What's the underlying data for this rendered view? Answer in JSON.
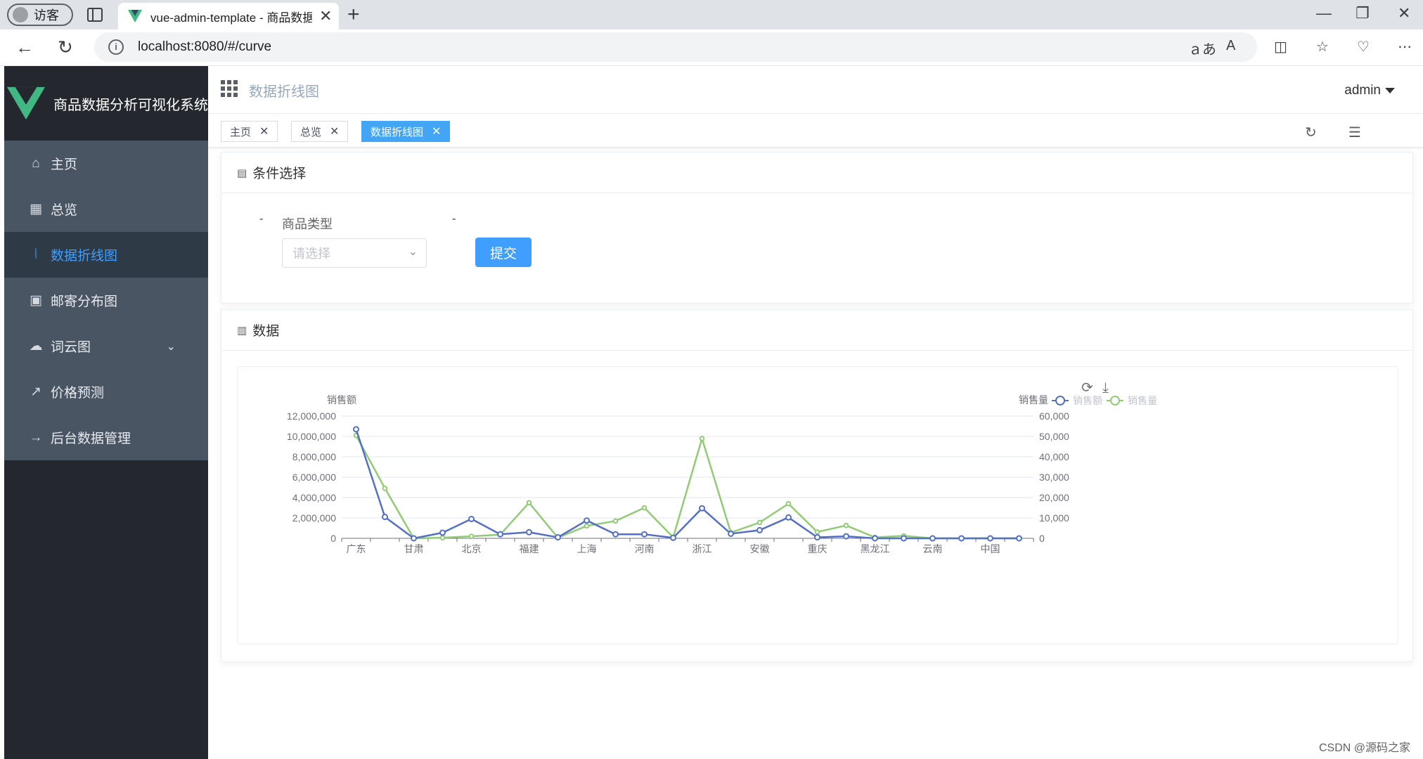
{
  "browser": {
    "profile_label": "访客",
    "tab_title": "vue-admin-template - 商品数据",
    "url": "localhost:8080/#/curve"
  },
  "sidebar": {
    "brand": "商品数据分析可视化系统",
    "items": [
      {
        "label": "主页",
        "icon": "home-icon"
      },
      {
        "label": "总览",
        "icon": "grid-icon"
      },
      {
        "label": "数据折线图",
        "icon": "line-chart-icon"
      },
      {
        "label": "邮寄分布图",
        "icon": "package-icon"
      },
      {
        "label": "词云图",
        "icon": "cloud-icon"
      },
      {
        "label": "价格预测",
        "icon": "trend-icon"
      },
      {
        "label": "后台数据管理",
        "icon": "arrow-right-icon"
      }
    ],
    "active_index": 2
  },
  "navbar": {
    "breadcrumb": "数据折线图",
    "user": "admin"
  },
  "tags": [
    {
      "label": "主页"
    },
    {
      "label": "总览"
    },
    {
      "label": "数据折线图"
    }
  ],
  "filter_card": {
    "title": "条件选择",
    "field_label": "商品类型",
    "select_placeholder": "请选择",
    "submit_label": "提交",
    "dash_left": "-",
    "dash_right": "-"
  },
  "data_card": {
    "title": "数据"
  },
  "watermark": "CSDN @源码之家",
  "chart_data": {
    "type": "line",
    "categories": [
      "广东",
      "",
      "甘肃",
      "",
      "北京",
      "",
      "福建",
      "",
      "上海",
      "",
      "河南",
      "",
      "浙江",
      "",
      "安徽",
      "",
      "重庆",
      "",
      "黑龙江",
      "",
      "云南",
      "",
      "中国",
      ""
    ],
    "y_left_label": "销售额",
    "y_right_label": "销售量",
    "y_left_ticks": [
      "0",
      "2,000,000",
      "4,000,000",
      "6,000,000",
      "8,000,000",
      "10,000,000",
      "12,000,000"
    ],
    "y_right_ticks": [
      "0",
      "10,000",
      "20,000",
      "30,000",
      "40,000",
      "50,000",
      "60,000"
    ],
    "ylim_left": [
      0,
      12000000
    ],
    "ylim_right": [
      0,
      60000
    ],
    "legend": [
      "销售额",
      "销售量"
    ],
    "colors": {
      "sales_amount": "#5470c6",
      "sales_volume": "#91cc75"
    },
    "series": [
      {
        "name": "销售额",
        "axis": "left",
        "values": [
          10700000,
          2100000,
          0,
          550000,
          1900000,
          400000,
          600000,
          100000,
          1750000,
          400000,
          400000,
          50000,
          2950000,
          450000,
          800000,
          2050000,
          100000,
          200000,
          0,
          0,
          0,
          0,
          0,
          0
        ]
      },
      {
        "name": "销售量",
        "axis": "right",
        "values": [
          50500,
          24500,
          0,
          300,
          1000,
          1800,
          17500,
          300,
          6100,
          8500,
          15000,
          500,
          49000,
          2800,
          7800,
          17000,
          3100,
          6300,
          500,
          1200,
          0,
          0,
          0,
          0
        ]
      }
    ]
  }
}
